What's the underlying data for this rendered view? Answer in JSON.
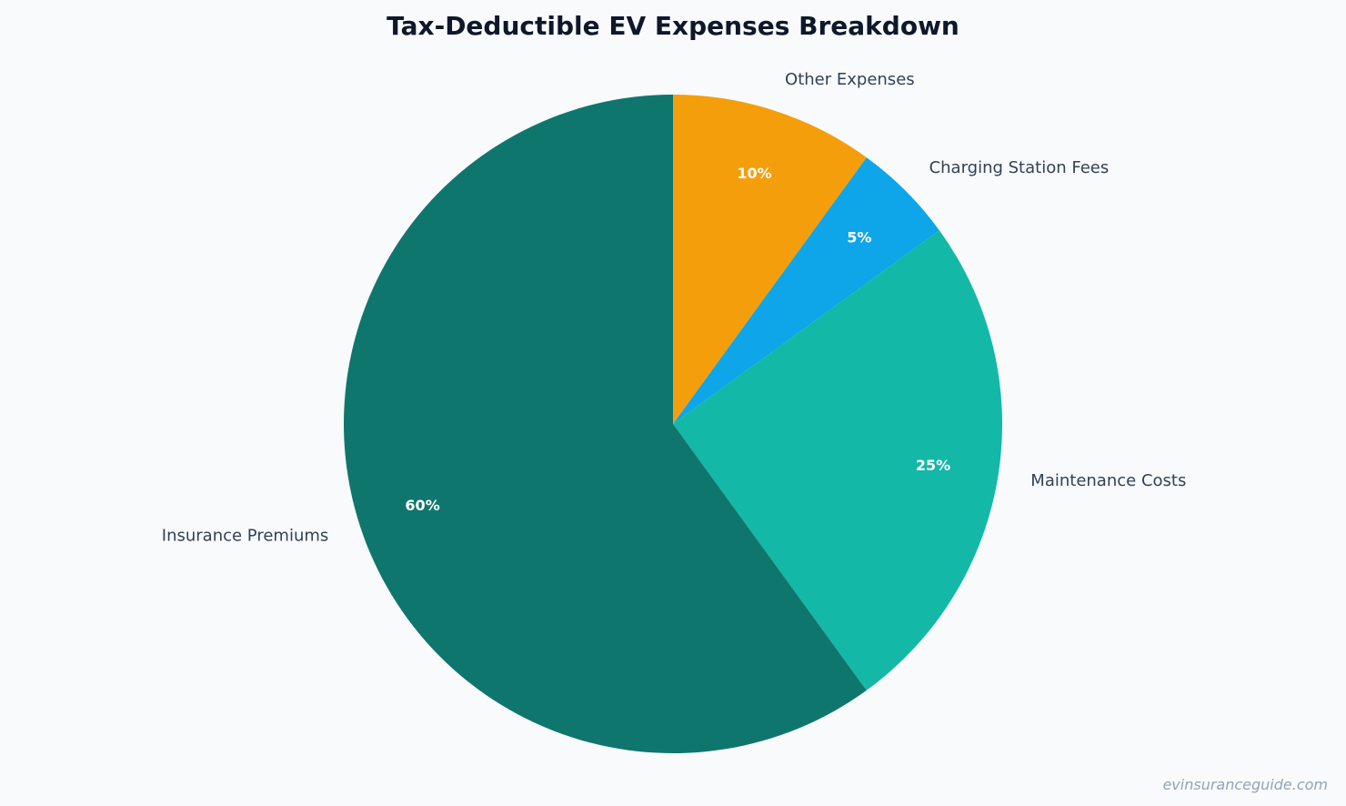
{
  "chart_data": {
    "type": "pie",
    "title": "Tax-Deductible EV Expenses Breakdown",
    "start": "top",
    "direction": "clockwise",
    "slices": [
      {
        "label": "Other Expenses",
        "value": 10,
        "display": "10%",
        "color": "#f59e0b"
      },
      {
        "label": "Charging Station Fees",
        "value": 5,
        "display": "5%",
        "color": "#0ea5e9"
      },
      {
        "label": "Maintenance Costs",
        "value": 25,
        "display": "25%",
        "color": "#14b8a6"
      },
      {
        "label": "Insurance Premiums",
        "value": 60,
        "display": "60%",
        "color": "#0f766e"
      }
    ]
  },
  "watermark": "evinsuranceguide.com"
}
